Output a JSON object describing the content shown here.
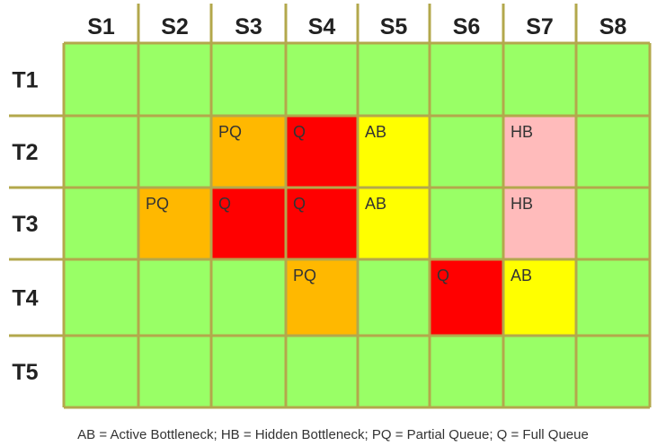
{
  "columns": [
    "S1",
    "S2",
    "S3",
    "S4",
    "S5",
    "S6",
    "S7",
    "S8"
  ],
  "rows": [
    "T1",
    "T2",
    "T3",
    "T4",
    "T5"
  ],
  "status_colors": {
    "normal": "#99ff66",
    "AB": "#ffff00",
    "HB": "#ffbbbb",
    "PQ": "#ffb800",
    "Q": "#ff0000"
  },
  "line_color": "#b3a84c",
  "cells": [
    {
      "row": "T2",
      "col": "S3",
      "status": "PQ"
    },
    {
      "row": "T2",
      "col": "S4",
      "status": "Q"
    },
    {
      "row": "T2",
      "col": "S5",
      "status": "AB"
    },
    {
      "row": "T2",
      "col": "S7",
      "status": "HB"
    },
    {
      "row": "T3",
      "col": "S2",
      "status": "PQ"
    },
    {
      "row": "T3",
      "col": "S3",
      "status": "Q"
    },
    {
      "row": "T3",
      "col": "S4",
      "status": "Q"
    },
    {
      "row": "T3",
      "col": "S5",
      "status": "AB"
    },
    {
      "row": "T3",
      "col": "S7",
      "status": "HB"
    },
    {
      "row": "T4",
      "col": "S4",
      "status": "PQ"
    },
    {
      "row": "T4",
      "col": "S6",
      "status": "Q"
    },
    {
      "row": "T4",
      "col": "S7",
      "status": "AB"
    }
  ],
  "legend": "AB = Active Bottleneck; HB = Hidden Bottleneck; PQ = Partial Queue; Q = Full Queue"
}
